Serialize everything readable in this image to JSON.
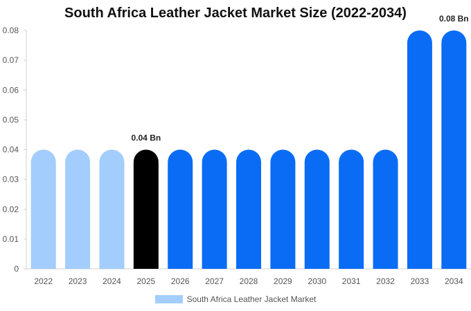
{
  "chart_data": {
    "type": "bar",
    "title": "South Africa Leather Jacket Market Size (2022-2034)",
    "xlabel": "",
    "ylabel": "",
    "categories": [
      "2022",
      "2023",
      "2024",
      "2025",
      "2026",
      "2027",
      "2028",
      "2029",
      "2030",
      "2031",
      "2032",
      "2033",
      "2034"
    ],
    "series": [
      {
        "name": "South Africa Leather Jacket Market",
        "values": [
          0.04,
          0.04,
          0.04,
          0.04,
          0.04,
          0.04,
          0.04,
          0.04,
          0.04,
          0.04,
          0.04,
          0.08,
          0.08
        ]
      }
    ],
    "ylim": [
      0,
      0.08
    ],
    "yticks": [
      "0",
      "0.01",
      "0.02",
      "0.03",
      "0.04",
      "0.05",
      "0.06",
      "0.07",
      "0.08"
    ],
    "data_labels": [
      {
        "category": "2025",
        "text": "0.04 Bn"
      },
      {
        "category": "2034",
        "text": "0.08 Bn"
      }
    ],
    "bar_colors": {
      "historical": "#a3cdfc",
      "current": "#000000",
      "forecast": "#0a6cf5"
    },
    "bar_color_per_category": [
      "historical",
      "historical",
      "historical",
      "current",
      "forecast",
      "forecast",
      "forecast",
      "forecast",
      "forecast",
      "forecast",
      "forecast",
      "forecast",
      "forecast"
    ],
    "legend": {
      "position": "bottom",
      "color": "#a3cdfc"
    },
    "grid": false
  }
}
